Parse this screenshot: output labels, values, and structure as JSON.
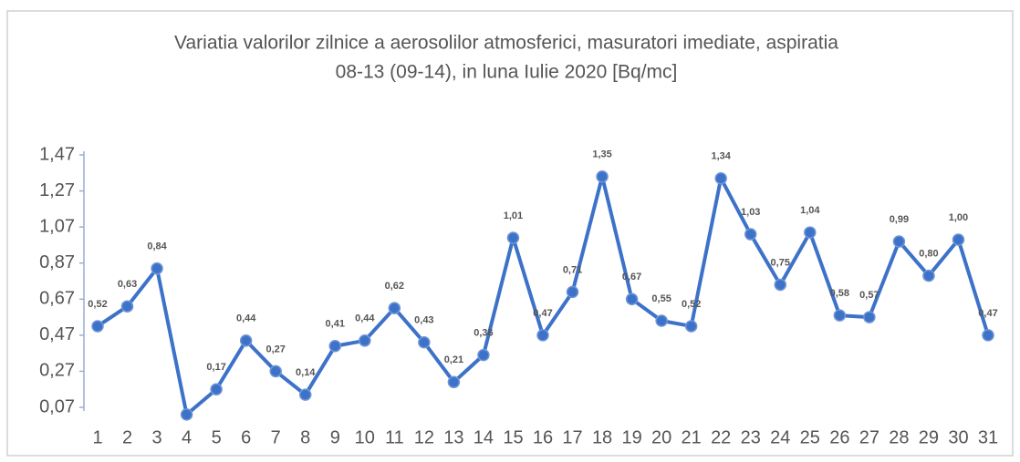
{
  "chart_data": {
    "type": "line",
    "title": [
      "Variatia valorilor zilnice a aerosolilor atmosferici, masuratori imediate, aspiratia",
      "08-13 (09-14),  in luna Iulie 2020 [Bq/mc]"
    ],
    "categories": [
      "1",
      "2",
      "3",
      "4",
      "5",
      "6",
      "7",
      "8",
      "9",
      "10",
      "11",
      "12",
      "13",
      "14",
      "15",
      "16",
      "17",
      "18",
      "19",
      "20",
      "21",
      "22",
      "23",
      "24",
      "25",
      "26",
      "27",
      "28",
      "29",
      "30",
      "31"
    ],
    "series": [
      {
        "color": "#3d72c9",
        "values": [
          0.52,
          0.63,
          0.84,
          0.03,
          0.17,
          0.44,
          0.27,
          0.14,
          0.41,
          0.44,
          0.62,
          0.43,
          0.21,
          0.36,
          1.01,
          0.47,
          0.71,
          1.35,
          0.67,
          0.55,
          0.52,
          1.34,
          1.03,
          0.75,
          1.04,
          0.58,
          0.57,
          0.99,
          0.8,
          1.0,
          0.47
        ],
        "value_labels": [
          "0,52",
          "0,63",
          "0,84",
          null,
          "0,17",
          "0,44",
          "0,27",
          "0,14",
          "0,41",
          "0,44",
          "0,62",
          "0,43",
          "0,21",
          "0,36",
          "1,01",
          "0,47",
          "0,71",
          "1,35",
          "0,67",
          "0,55",
          "0,52",
          "1,34",
          "1,03",
          "0,75",
          "1,04",
          "0,58",
          "0,57",
          "0,99",
          "0,80",
          "1,00",
          "0,47"
        ]
      }
    ],
    "ylim": [
      0.07,
      1.47
    ],
    "yticks": [
      {
        "value": 0.07,
        "label": "0,07"
      },
      {
        "value": 0.27,
        "label": "0,27"
      },
      {
        "value": 0.47,
        "label": "0,47"
      },
      {
        "value": 0.67,
        "label": "0,67"
      },
      {
        "value": 0.87,
        "label": "0,87"
      },
      {
        "value": 1.07,
        "label": "1,07"
      },
      {
        "value": 1.27,
        "label": "1,27"
      },
      {
        "value": 1.47,
        "label": "1,47"
      }
    ]
  }
}
